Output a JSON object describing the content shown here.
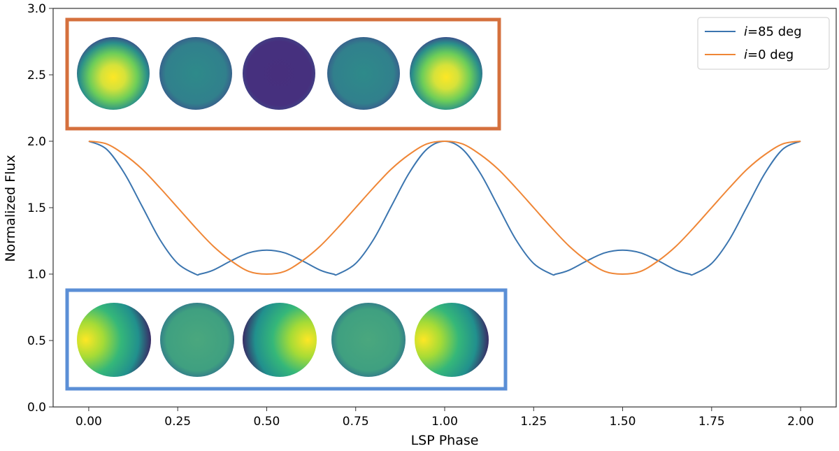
{
  "chart_data": {
    "type": "line",
    "title": "",
    "xlabel": "LSP Phase",
    "ylabel": "Normalized Flux",
    "xlim": [
      -0.1,
      2.1
    ],
    "ylim": [
      0.0,
      3.0
    ],
    "x_ticks": [
      "0.00",
      "0.25",
      "0.50",
      "0.75",
      "1.00",
      "1.25",
      "1.50",
      "1.75",
      "2.00"
    ],
    "y_ticks": [
      "0.0",
      "0.5",
      "1.0",
      "1.5",
      "2.0",
      "2.5",
      "3.0"
    ],
    "grid": false,
    "legend_position": "top-right",
    "series": [
      {
        "name_prefix": "i",
        "name_suffix": "=85 deg",
        "color": "#3b75af",
        "x": [
          0.0,
          0.05,
          0.1,
          0.15,
          0.2,
          0.25,
          0.3,
          0.3125,
          0.35,
          0.4,
          0.45,
          0.5,
          0.55,
          0.6,
          0.65,
          0.6875,
          0.7,
          0.75,
          0.8,
          0.85,
          0.9,
          0.95,
          1.0,
          1.05,
          1.1,
          1.15,
          1.2,
          1.25,
          1.3,
          1.3125,
          1.35,
          1.4,
          1.45,
          1.5,
          1.55,
          1.6,
          1.65,
          1.6875,
          1.7,
          1.75,
          1.8,
          1.85,
          1.9,
          1.95,
          2.0
        ],
        "y": [
          2.0,
          1.94,
          1.76,
          1.51,
          1.26,
          1.08,
          1.0,
          1.0,
          1.03,
          1.1,
          1.16,
          1.18,
          1.16,
          1.1,
          1.03,
          1.0,
          1.0,
          1.08,
          1.26,
          1.51,
          1.76,
          1.94,
          2.0,
          1.94,
          1.76,
          1.51,
          1.26,
          1.08,
          1.0,
          1.0,
          1.03,
          1.1,
          1.16,
          1.18,
          1.16,
          1.1,
          1.03,
          1.0,
          1.0,
          1.08,
          1.26,
          1.51,
          1.76,
          1.94,
          2.0
        ]
      },
      {
        "name_prefix": "i",
        "name_suffix": "=0 deg",
        "color": "#ef8636",
        "x": [
          0.0,
          0.05,
          0.1,
          0.15,
          0.2,
          0.25,
          0.3,
          0.35,
          0.4,
          0.45,
          0.5,
          0.55,
          0.6,
          0.65,
          0.7,
          0.75,
          0.8,
          0.85,
          0.9,
          0.95,
          1.0,
          1.05,
          1.1,
          1.15,
          1.2,
          1.25,
          1.3,
          1.35,
          1.4,
          1.45,
          1.5,
          1.55,
          1.6,
          1.65,
          1.7,
          1.75,
          1.8,
          1.85,
          1.9,
          1.95,
          2.0
        ],
        "y": [
          2.0,
          1.98,
          1.9,
          1.79,
          1.65,
          1.5,
          1.35,
          1.21,
          1.1,
          1.02,
          1.0,
          1.02,
          1.1,
          1.21,
          1.35,
          1.5,
          1.65,
          1.79,
          1.9,
          1.98,
          2.0,
          1.98,
          1.9,
          1.79,
          1.65,
          1.5,
          1.35,
          1.21,
          1.1,
          1.02,
          1.0,
          1.02,
          1.1,
          1.21,
          1.35,
          1.5,
          1.65,
          1.79,
          1.9,
          1.98,
          2.0
        ]
      }
    ],
    "insets": [
      {
        "name": "inset-i0",
        "frame_color": "#d5703d",
        "disks": [
          "bright-center",
          "medium-uniform",
          "dark-uniform",
          "medium-uniform",
          "bright-center"
        ]
      },
      {
        "name": "inset-i85",
        "frame_color": "#5b8fd6",
        "disks": [
          "bright-left",
          "medium-uniform",
          "bright-right",
          "medium-uniform",
          "bright-left"
        ]
      }
    ]
  }
}
